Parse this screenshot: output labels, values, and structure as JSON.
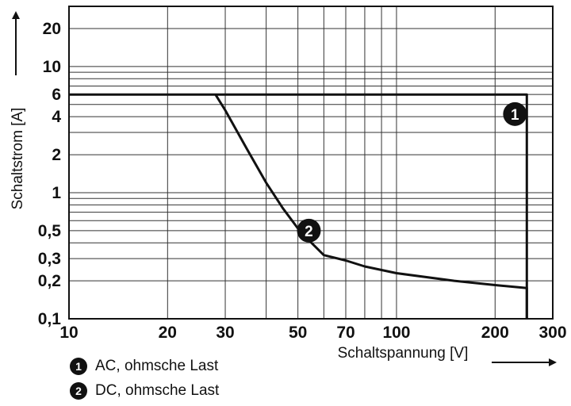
{
  "chart_data": {
    "type": "line",
    "xscale": "log",
    "yscale": "log",
    "xlim": [
      10,
      300
    ],
    "ylim": [
      0.1,
      30
    ],
    "xlabel": "Schaltspannung [V]",
    "ylabel": "Schaltstrom [A]",
    "xticks": [
      {
        "value": 10,
        "label": "10"
      },
      {
        "value": 20,
        "label": "20"
      },
      {
        "value": 30,
        "label": "30"
      },
      {
        "value": 50,
        "label": "50"
      },
      {
        "value": 70,
        "label": "70"
      },
      {
        "value": 100,
        "label": "100"
      },
      {
        "value": 200,
        "label": "200"
      },
      {
        "value": 300,
        "label": "300"
      }
    ],
    "yticks": [
      {
        "value": 0.1,
        "label": "0,1"
      },
      {
        "value": 0.2,
        "label": "0,2"
      },
      {
        "value": 0.3,
        "label": "0,3"
      },
      {
        "value": 0.5,
        "label": "0,5"
      },
      {
        "value": 1,
        "label": "1"
      },
      {
        "value": 2,
        "label": "2"
      },
      {
        "value": 4,
        "label": "4"
      },
      {
        "value": 6,
        "label": "6"
      },
      {
        "value": 10,
        "label": "10"
      },
      {
        "value": 20,
        "label": "20"
      }
    ],
    "xgrid": [
      10,
      20,
      30,
      40,
      50,
      60,
      70,
      80,
      90,
      100,
      200,
      300
    ],
    "ygrid": [
      0.1,
      0.2,
      0.3,
      0.4,
      0.5,
      0.6,
      0.7,
      0.8,
      0.9,
      1,
      2,
      3,
      4,
      5,
      6,
      7,
      8,
      9,
      10,
      20,
      30
    ],
    "series": [
      {
        "name": "AC, ohmsche Last",
        "marker": "1",
        "x": [
          10,
          250,
          250
        ],
        "y": [
          6,
          6,
          0.1
        ],
        "label_at": [
          230,
          4.2
        ]
      },
      {
        "name": "DC, ohmsche Last",
        "marker": "2",
        "x": [
          28,
          30,
          35,
          40,
          45,
          50,
          55,
          60,
          70,
          80,
          100,
          150,
          200,
          250,
          250
        ],
        "y": [
          6,
          4.5,
          2.2,
          1.2,
          0.75,
          0.52,
          0.4,
          0.32,
          0.29,
          0.26,
          0.23,
          0.2,
          0.185,
          0.175,
          0.1
        ],
        "label_at": [
          54,
          0.5
        ]
      }
    ],
    "legend": [
      {
        "marker": "1",
        "label": "AC, ohmsche Last"
      },
      {
        "marker": "2",
        "label": "DC, ohmsche Last"
      }
    ]
  }
}
